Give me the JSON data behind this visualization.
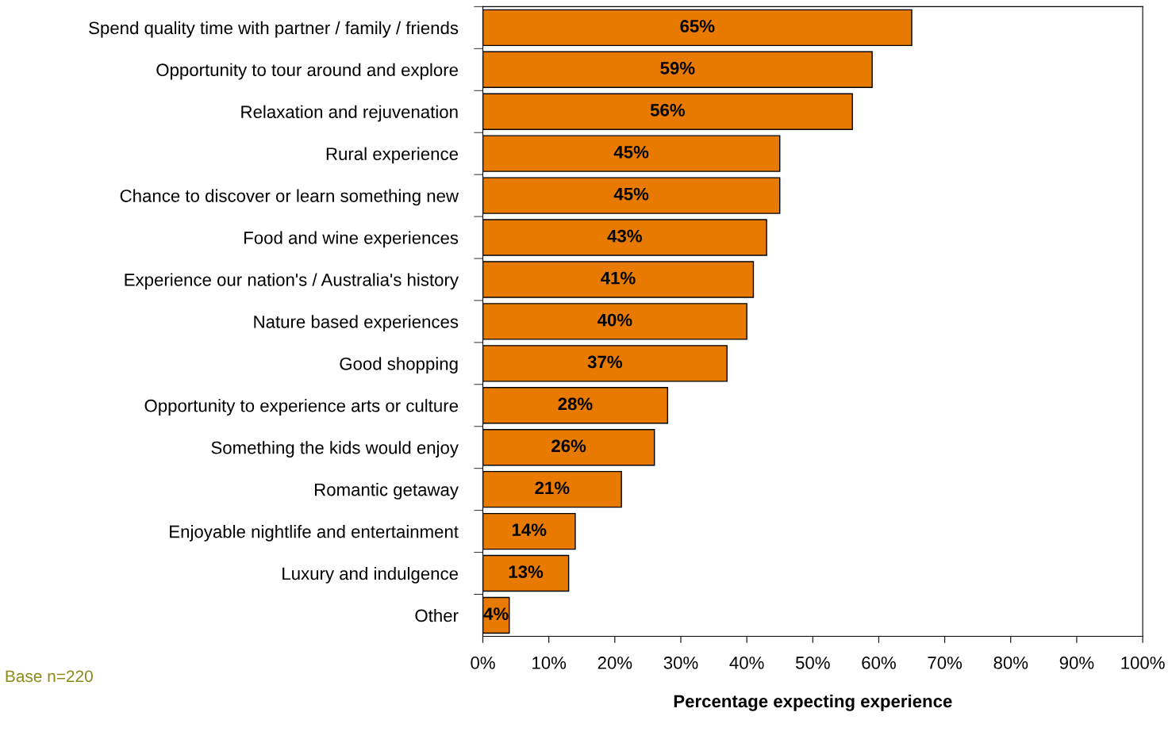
{
  "chart_data": {
    "type": "bar",
    "orientation": "horizontal",
    "categories": [
      "Spend quality time with partner / family / friends",
      "Opportunity to tour around and explore",
      "Relaxation and rejuvenation",
      "Rural experience",
      "Chance to discover or learn something new",
      "Food and wine experiences",
      "Experience our nation's / Australia's history",
      "Nature based experiences",
      "Good shopping",
      "Opportunity to experience arts or culture",
      "Something the kids would enjoy",
      "Romantic getaway",
      "Enjoyable nightlife and entertainment",
      "Luxury and indulgence",
      "Other"
    ],
    "values": [
      65,
      59,
      56,
      45,
      45,
      43,
      41,
      40,
      37,
      28,
      26,
      21,
      14,
      13,
      4
    ],
    "value_labels": [
      "65%",
      "59%",
      "56%",
      "45%",
      "45%",
      "43%",
      "41%",
      "40%",
      "37%",
      "28%",
      "26%",
      "21%",
      "14%",
      "13%",
      "4%"
    ],
    "color": "#e87a00",
    "xlim": [
      0,
      100
    ],
    "xticks": [
      {
        "value": 0,
        "label": "0%"
      },
      {
        "value": 10,
        "label": "10%"
      },
      {
        "value": 20,
        "label": "20%"
      },
      {
        "value": 30,
        "label": "30%"
      },
      {
        "value": 40,
        "label": "40%"
      },
      {
        "value": 50,
        "label": "50%"
      },
      {
        "value": 60,
        "label": "60%"
      },
      {
        "value": 70,
        "label": "70%"
      },
      {
        "value": 80,
        "label": "80%"
      },
      {
        "value": 90,
        "label": "90%"
      },
      {
        "value": 100,
        "label": "100%"
      }
    ],
    "xlabel": "Percentage expecting experience",
    "annotations": [
      "Base n=220"
    ],
    "grid": false,
    "legend": false
  }
}
